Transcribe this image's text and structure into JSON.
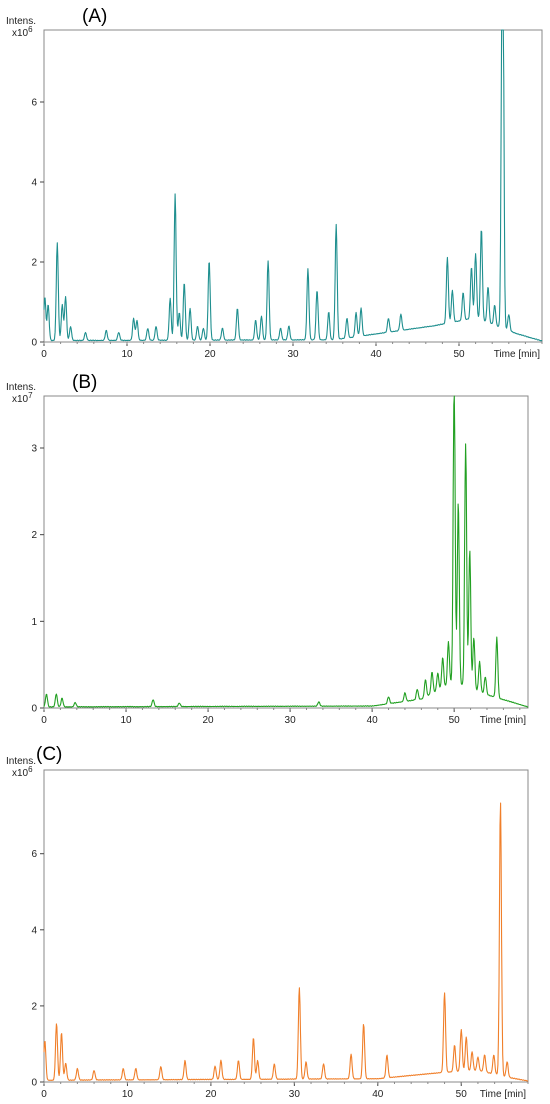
{
  "chart_data": [
    {
      "type": "line",
      "panel": "(A)",
      "xlabel": "Time [min]",
      "ylabel": "Intens.",
      "yexponent": "x10",
      "yexponent_power": "6",
      "xlim": [
        0,
        60
      ],
      "ylim": [
        0,
        7.8
      ],
      "xticks": [
        0,
        10,
        20,
        30,
        40,
        50
      ],
      "yticks": [
        0,
        2,
        4,
        6
      ],
      "color": "#1f8f8f",
      "baseline": 0.03,
      "drift": [
        [
          0,
          0.03
        ],
        [
          35,
          0.05
        ],
        [
          47,
          0.4
        ],
        [
          52,
          0.6
        ],
        [
          57,
          0.2
        ],
        [
          60,
          0.02
        ]
      ],
      "peaks": [
        [
          0.1,
          1.1
        ],
        [
          0.5,
          0.9
        ],
        [
          1.6,
          2.45
        ],
        [
          2.2,
          0.9
        ],
        [
          2.6,
          1.1
        ],
        [
          3.2,
          0.35
        ],
        [
          5.0,
          0.2
        ],
        [
          7.5,
          0.25
        ],
        [
          9.0,
          0.2
        ],
        [
          10.8,
          0.55
        ],
        [
          11.2,
          0.5
        ],
        [
          12.5,
          0.3
        ],
        [
          13.5,
          0.35
        ],
        [
          15.2,
          1.05
        ],
        [
          15.8,
          3.65
        ],
        [
          16.3,
          0.7
        ],
        [
          16.9,
          1.45
        ],
        [
          17.6,
          0.8
        ],
        [
          18.5,
          0.35
        ],
        [
          19.2,
          0.3
        ],
        [
          19.9,
          2.0
        ],
        [
          21.5,
          0.3
        ],
        [
          23.3,
          0.8
        ],
        [
          25.5,
          0.5
        ],
        [
          26.2,
          0.6
        ],
        [
          27.0,
          1.98
        ],
        [
          28.5,
          0.3
        ],
        [
          29.5,
          0.35
        ],
        [
          31.8,
          1.78
        ],
        [
          32.9,
          1.25
        ],
        [
          34.3,
          0.7
        ],
        [
          35.2,
          2.88
        ],
        [
          36.5,
          0.5
        ],
        [
          37.6,
          0.6
        ],
        [
          38.2,
          0.7
        ],
        [
          41.5,
          0.35
        ],
        [
          43.0,
          0.4
        ],
        [
          48.6,
          1.65
        ],
        [
          49.2,
          0.8
        ],
        [
          50.5,
          0.7
        ],
        [
          51.5,
          1.3
        ],
        [
          52.0,
          1.6
        ],
        [
          52.7,
          2.3
        ],
        [
          53.5,
          0.9
        ],
        [
          54.3,
          0.5
        ],
        [
          55.2,
          7.55
        ],
        [
          55.3,
          6.1
        ],
        [
          56.0,
          0.4
        ]
      ]
    },
    {
      "type": "line",
      "panel": "(B)",
      "xlabel": "Time [min]",
      "ylabel": "Intens.",
      "yexponent": "x10",
      "yexponent_power": "7",
      "xlim": [
        0,
        59
      ],
      "ylim": [
        0,
        3.6
      ],
      "xticks": [
        0,
        10,
        20,
        30,
        40,
        50
      ],
      "yticks": [
        0,
        1,
        2,
        3
      ],
      "color": "#22a022",
      "baseline": 0.01,
      "drift": [
        [
          0,
          0.01
        ],
        [
          40,
          0.02
        ],
        [
          46,
          0.1
        ],
        [
          50,
          0.3
        ],
        [
          54,
          0.15
        ],
        [
          59,
          0.01
        ]
      ],
      "peaks": [
        [
          0.3,
          0.15
        ],
        [
          1.5,
          0.15
        ],
        [
          2.2,
          0.1
        ],
        [
          3.8,
          0.05
        ],
        [
          13.3,
          0.08
        ],
        [
          16.5,
          0.04
        ],
        [
          33.5,
          0.05
        ],
        [
          42.0,
          0.08
        ],
        [
          44.0,
          0.1
        ],
        [
          45.5,
          0.12
        ],
        [
          46.5,
          0.2
        ],
        [
          47.3,
          0.25
        ],
        [
          48.0,
          0.2
        ],
        [
          48.6,
          0.35
        ],
        [
          49.3,
          0.5
        ],
        [
          50.0,
          3.45
        ],
        [
          50.5,
          2.1
        ],
        [
          51.4,
          2.8
        ],
        [
          51.9,
          1.6
        ],
        [
          52.4,
          0.6
        ],
        [
          53.1,
          0.35
        ],
        [
          53.8,
          0.2
        ],
        [
          55.2,
          0.7
        ]
      ]
    },
    {
      "type": "line",
      "panel": "(C)",
      "xlabel": "Time [min]",
      "ylabel": "Intens.",
      "yexponent": "x10",
      "yexponent_power": "6",
      "xlim": [
        0,
        58
      ],
      "ylim": [
        0,
        8.2
      ],
      "xticks": [
        0,
        10,
        20,
        30,
        40,
        50
      ],
      "yticks": [
        0,
        2,
        4,
        6
      ],
      "color": "#f07f2a",
      "baseline": 0.04,
      "drift": [
        [
          0,
          0.04
        ],
        [
          40,
          0.08
        ],
        [
          48,
          0.25
        ],
        [
          52,
          0.3
        ],
        [
          56,
          0.1
        ],
        [
          58,
          0.02
        ]
      ],
      "peaks": [
        [
          0.1,
          1.05
        ],
        [
          1.5,
          1.5
        ],
        [
          2.1,
          1.25
        ],
        [
          2.6,
          0.45
        ],
        [
          4.0,
          0.3
        ],
        [
          6.0,
          0.25
        ],
        [
          9.5,
          0.3
        ],
        [
          11.0,
          0.3
        ],
        [
          14.0,
          0.35
        ],
        [
          16.9,
          0.5
        ],
        [
          20.5,
          0.35
        ],
        [
          21.2,
          0.5
        ],
        [
          23.3,
          0.5
        ],
        [
          25.1,
          1.1
        ],
        [
          25.6,
          0.5
        ],
        [
          27.6,
          0.4
        ],
        [
          30.6,
          2.4
        ],
        [
          31.4,
          0.45
        ],
        [
          33.5,
          0.4
        ],
        [
          36.8,
          0.65
        ],
        [
          38.3,
          1.45
        ],
        [
          41.1,
          0.6
        ],
        [
          48.0,
          2.1
        ],
        [
          49.2,
          0.7
        ],
        [
          50.0,
          1.1
        ],
        [
          50.6,
          0.9
        ],
        [
          51.3,
          0.5
        ],
        [
          52.0,
          0.35
        ],
        [
          52.8,
          0.45
        ],
        [
          53.9,
          0.5
        ],
        [
          54.7,
          7.2
        ],
        [
          55.5,
          0.4
        ]
      ]
    }
  ]
}
